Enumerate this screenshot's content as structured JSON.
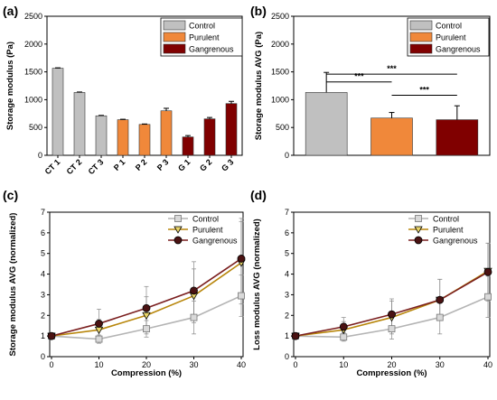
{
  "chart_data": [
    {
      "type": "bar",
      "panel": "(a)",
      "ylabel": "Storage modulus (Pa)",
      "xlabel": "",
      "ylim": [
        0,
        2500
      ],
      "yticks": [
        0,
        500,
        1000,
        1500,
        2000,
        2500
      ],
      "categories": [
        "CT 1",
        "CT 2",
        "CT 3",
        "P 1",
        "P 2",
        "P 3",
        "G 1",
        "G 2",
        "G 3"
      ],
      "values": [
        1565,
        1130,
        710,
        640,
        555,
        800,
        330,
        655,
        930
      ],
      "errors": [
        8,
        8,
        8,
        8,
        8,
        45,
        25,
        25,
        40
      ],
      "groups": [
        "Control",
        "Control",
        "Control",
        "Purulent",
        "Purulent",
        "Purulent",
        "Gangrenous",
        "Gangrenous",
        "Gangrenous"
      ],
      "legend": [
        "Control",
        "Purulent",
        "Gangrenous"
      ],
      "colors": {
        "Control": "#c0c0c0",
        "Purulent": "#f0883a",
        "Gangrenous": "#800000"
      },
      "legend_position": "top-right"
    },
    {
      "type": "bar",
      "panel": "(b)",
      "ylabel": "Storage modulus AVG (Pa)",
      "xlabel": "",
      "ylim": [
        0,
        2500
      ],
      "yticks": [
        0,
        500,
        1000,
        1500,
        2000,
        2500
      ],
      "categories": [
        "Control",
        "Purulent",
        "Gangrenous"
      ],
      "values": [
        1130,
        670,
        640
      ],
      "errors": [
        360,
        100,
        250
      ],
      "colors": {
        "Control": "#c0c0c0",
        "Purulent": "#f0883a",
        "Gangrenous": "#800000"
      },
      "legend": [
        "Control",
        "Purulent",
        "Gangrenous"
      ],
      "legend_position": "top-right",
      "significance": [
        {
          "from": "Control",
          "to": "Purulent",
          "label": "***"
        },
        {
          "from": "Control",
          "to": "Gangrenous",
          "label": "***"
        },
        {
          "from": "Purulent",
          "to": "Gangrenous",
          "label": "***"
        }
      ]
    },
    {
      "type": "line",
      "panel": "(c)",
      "xlabel": "Compression (%)",
      "ylabel": "Storage modulus AVG (normalized)",
      "xlim": [
        0,
        40
      ],
      "ylim": [
        0,
        7
      ],
      "xticks": [
        0,
        10,
        20,
        30,
        40
      ],
      "yticks": [
        0,
        1,
        2,
        3,
        4,
        5,
        6,
        7
      ],
      "x": [
        0,
        10,
        20,
        30,
        40
      ],
      "legend_position": "top-center",
      "series": [
        {
          "name": "Control",
          "values": [
            1.0,
            0.85,
            1.35,
            1.9,
            2.95
          ],
          "errors": [
            0.05,
            0.2,
            0.4,
            0.8,
            1.0
          ],
          "marker": "square",
          "color": "#b4b4b4",
          "fill": "#d9d9d9"
        },
        {
          "name": "Purulent",
          "values": [
            1.0,
            1.3,
            2.0,
            2.95,
            4.55
          ],
          "errors": [
            0.05,
            0.5,
            0.9,
            1.3,
            2.0
          ],
          "marker": "triangle-down",
          "color": "#b8860b",
          "fill": "#e8d46a"
        },
        {
          "name": "Gangrenous",
          "values": [
            1.0,
            1.6,
            2.35,
            3.2,
            4.75
          ],
          "errors": [
            0.05,
            0.7,
            1.05,
            1.4,
            1.95
          ],
          "marker": "circle",
          "color": "#7a1e1e",
          "fill": "#4a1212"
        }
      ]
    },
    {
      "type": "line",
      "panel": "(d)",
      "xlabel": "Compression (%)",
      "ylabel": "Loss modulus AVG (normalized)",
      "xlim": [
        0,
        40
      ],
      "ylim": [
        0,
        7
      ],
      "xticks": [
        0,
        10,
        20,
        30,
        40
      ],
      "yticks": [
        0,
        1,
        2,
        3,
        4,
        5,
        6,
        7
      ],
      "x": [
        0,
        10,
        20,
        30,
        40
      ],
      "legend_position": "top-center",
      "series": [
        {
          "name": "Control",
          "values": [
            1.0,
            0.95,
            1.35,
            1.9,
            2.9
          ],
          "errors": [
            0.05,
            0.2,
            0.5,
            0.8,
            1.0
          ],
          "marker": "square",
          "color": "#b4b4b4",
          "fill": "#d9d9d9"
        },
        {
          "name": "Purulent",
          "values": [
            1.0,
            1.3,
            1.9,
            2.75,
            4.15
          ],
          "errors": [
            0.05,
            0.4,
            0.8,
            1.0,
            1.35
          ],
          "marker": "triangle-down",
          "color": "#b8860b",
          "fill": "#e8d46a"
        },
        {
          "name": "Gangrenous",
          "values": [
            1.0,
            1.45,
            2.05,
            2.75,
            4.1
          ],
          "errors": [
            0.05,
            0.45,
            0.75,
            1.0,
            1.4
          ],
          "marker": "circle",
          "color": "#7a1e1e",
          "fill": "#4a1212"
        }
      ]
    }
  ]
}
